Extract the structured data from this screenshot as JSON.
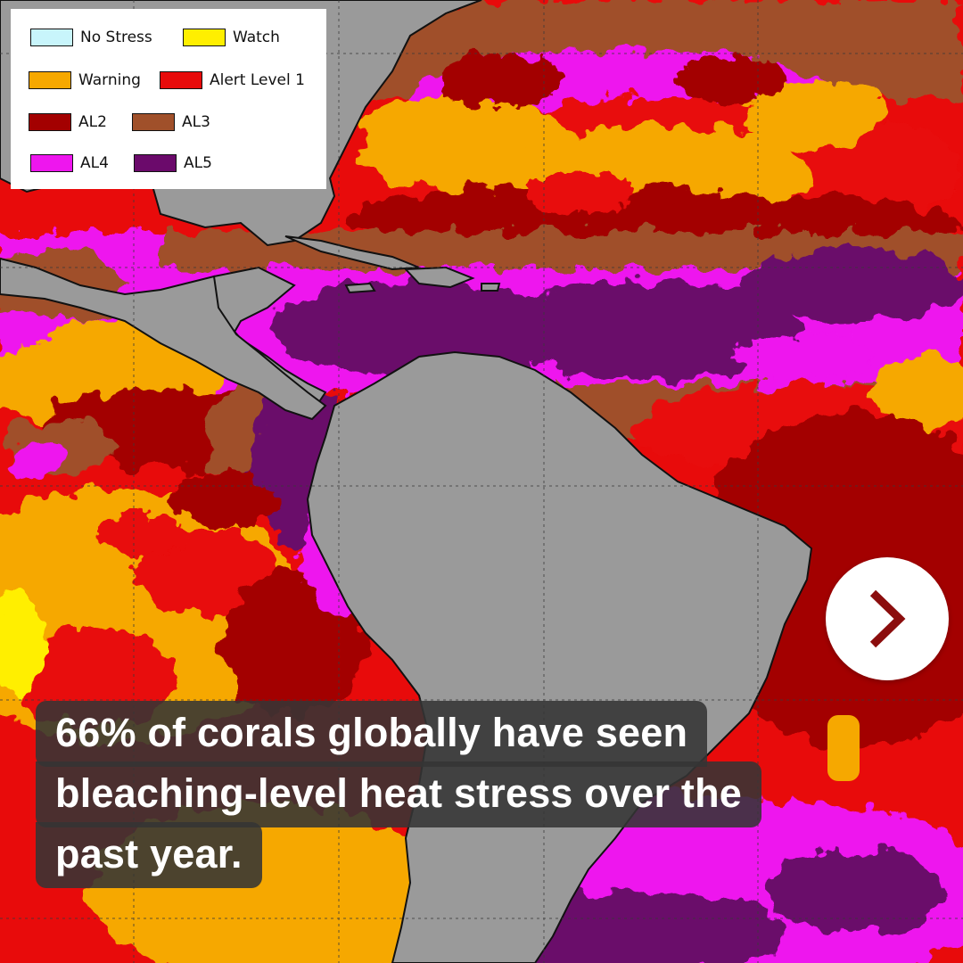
{
  "legend": {
    "items": [
      {
        "label": "No Stress",
        "color": "#c8f5fb"
      },
      {
        "label": "Watch",
        "color": "#ffef00"
      },
      {
        "label": "Warning",
        "color": "#f6a800"
      },
      {
        "label": "Alert Level 1",
        "color": "#e80b0b"
      },
      {
        "label": "AL2",
        "color": "#a30000"
      },
      {
        "label": "AL3",
        "color": "#a0502a"
      },
      {
        "label": "AL4",
        "color": "#ee16ee"
      },
      {
        "label": "AL5",
        "color": "#6b0a6b"
      }
    ]
  },
  "map": {
    "land_color": "#9a9a9a",
    "grid_color": "#3a3a3a"
  },
  "caption": {
    "line1": "66% of corals globally have seen",
    "line2": "bleaching-level heat stress over the",
    "line3": "past year.",
    "accent_color": "#f6a800"
  },
  "nav": {
    "next_icon": "chevron-right-icon",
    "icon_color": "#8b0d0d"
  }
}
